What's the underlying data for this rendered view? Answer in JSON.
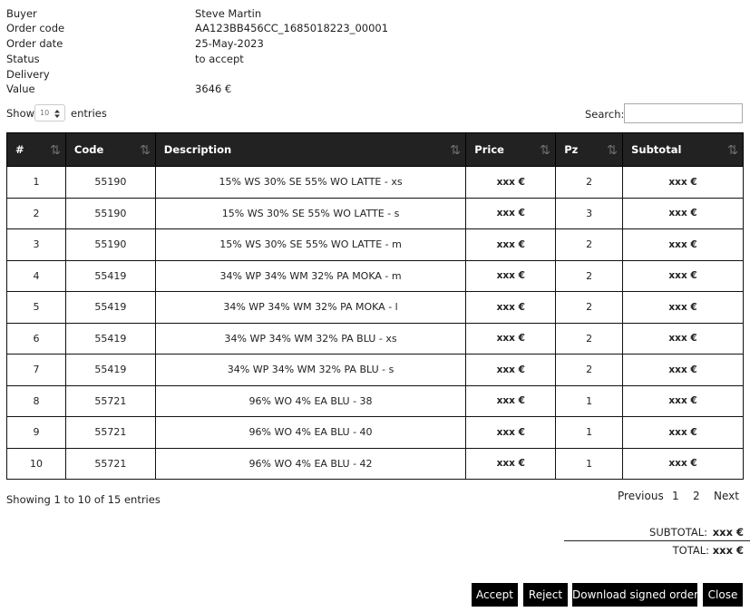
{
  "info": [
    {
      "label": "Buyer",
      "value": "Steve Martin"
    },
    {
      "label": "Order code",
      "value": "AA123BB456CC_1685018223_00001"
    },
    {
      "label": "Order date",
      "value": "25-May-2023"
    },
    {
      "label": "Status",
      "value": "to accept"
    },
    {
      "label": "Delivery"
    },
    {
      "label": "Value",
      "value": "3646 €"
    }
  ],
  "length": {
    "show": "Show",
    "select": "10",
    "entries": "entries"
  },
  "search": {
    "label": "Search:"
  },
  "table": {
    "headers": [
      "#",
      "Code",
      "Description",
      "Price",
      "Pz",
      "Subtotal"
    ],
    "rows": [
      [
        1,
        "55190",
        "15% WS 30% SE 55% WO LATTE - xs",
        "xxx €",
        2,
        "xxx €"
      ],
      [
        2,
        "55190",
        "15% WS 30% SE 55% WO LATTE - s",
        "xxx €",
        3,
        "xxx €"
      ],
      [
        3,
        "55190",
        "15% WS 30% SE 55% WO LATTE - m",
        "xxx €",
        2,
        "xxx €"
      ],
      [
        4,
        "55419",
        "34% WP 34% WM 32% PA MOKA - m",
        "xxx €",
        2,
        "xxx €"
      ],
      [
        5,
        "55419",
        "34% WP 34% WM 32% PA MOKA - l",
        "xxx €",
        2,
        "xxx €"
      ],
      [
        6,
        "55419",
        "34% WP 34% WM 32% PA BLU - xs",
        "xxx €",
        2,
        "xxx €"
      ],
      [
        7,
        "55419",
        "34% WP 34% WM 32% PA BLU - s",
        "xxx €",
        2,
        "xxx €"
      ],
      [
        8,
        "55721",
        "96% WO 4% EA BLU - 38",
        "xxx €",
        1,
        "xxx €"
      ],
      [
        9,
        "55721",
        "96% WO 4% EA BLU - 40",
        "xxx €",
        1,
        "xxx €"
      ],
      [
        10,
        "55721",
        "96% WO 4% EA BLU - 42",
        "xxx €",
        1,
        "xxx €"
      ]
    ]
  },
  "info_text": "Showing 1 to 10 of 15 entries",
  "pagination": [
    "Previous",
    "1",
    "2",
    "Next"
  ],
  "totals": {
    "subtotal_label": "SUBTOTAL:",
    "subtotal": "xxx €",
    "total_label": "TOTAL:",
    "total": "xxx €"
  },
  "buttons": [
    "Accept",
    "Reject",
    "Download signed order",
    "Close"
  ]
}
